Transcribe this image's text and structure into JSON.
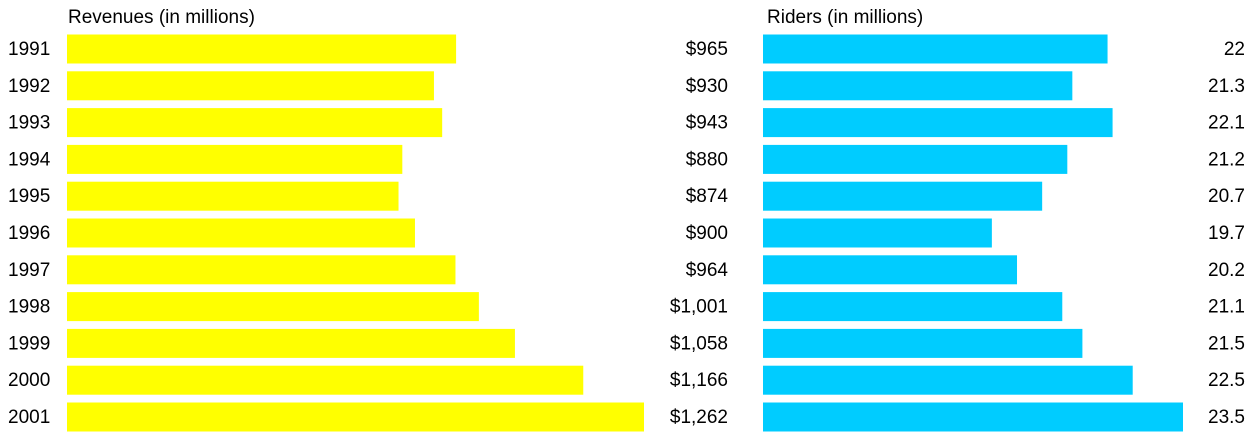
{
  "chart_data": [
    {
      "type": "bar",
      "orientation": "horizontal",
      "title": "Revenues (in millions)",
      "categories": [
        "1991",
        "1992",
        "1993",
        "1994",
        "1995",
        "1996",
        "1997",
        "1998",
        "1999",
        "2000",
        "2001"
      ],
      "values": [
        965,
        930,
        943,
        880,
        874,
        900,
        964,
        1001,
        1058,
        1166,
        1262
      ],
      "value_labels": [
        "$965",
        "$930",
        "$943",
        "$880",
        "$874",
        "$900",
        "$964",
        "$1,001",
        "$1,058",
        "$1,166",
        "$1,262"
      ],
      "color": "#ffff00",
      "xlim": [
        350,
        1262
      ]
    },
    {
      "type": "bar",
      "orientation": "horizontal",
      "title": "Riders (in millions)",
      "values": [
        22,
        21.3,
        22.1,
        21.2,
        20.7,
        19.7,
        20.2,
        21.1,
        21.5,
        22.5,
        23.5
      ],
      "color": "#00ccff",
      "xlim": [
        15.15,
        23.5
      ]
    }
  ]
}
